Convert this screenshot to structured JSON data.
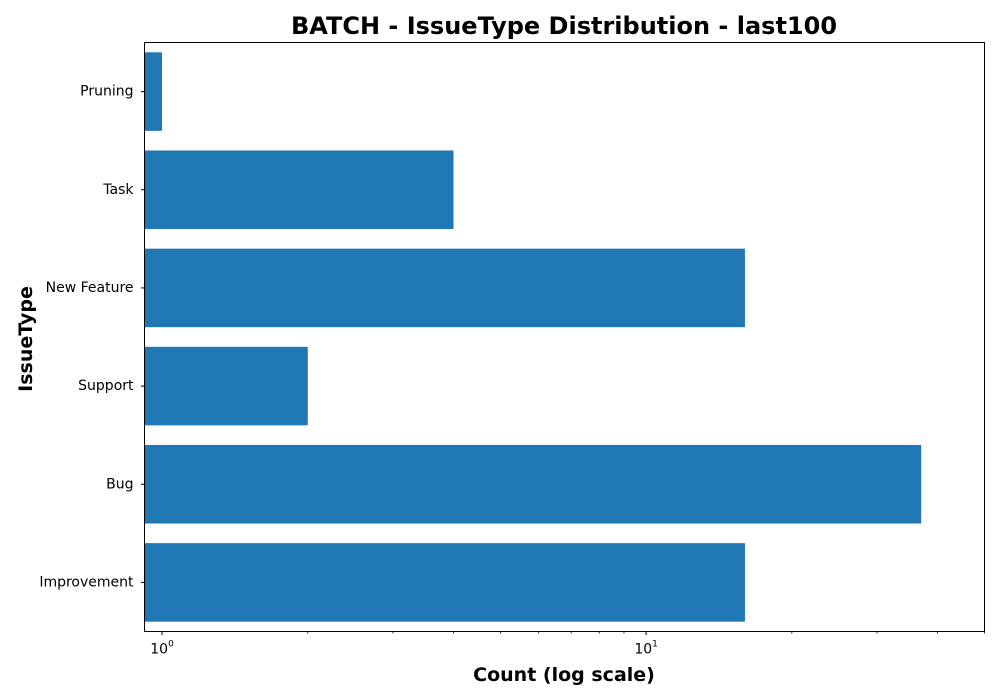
{
  "chart_data": {
    "type": "bar",
    "orientation": "horizontal",
    "title": "BATCH - IssueType Distribution - last100",
    "xlabel": "Count (log scale)",
    "ylabel": "IssueType",
    "x_scale": "log",
    "xlim": [
      0.92,
      50
    ],
    "x_major_ticks": [
      {
        "value": 1,
        "base": "10",
        "exponent": "0"
      },
      {
        "value": 10,
        "base": "10",
        "exponent": "1"
      }
    ],
    "categories": [
      "Pruning",
      "Task",
      "New Feature",
      "Support",
      "Bug",
      "Improvement"
    ],
    "values": [
      1,
      4,
      16,
      2,
      37,
      16
    ],
    "bar_color": "#1f77b4",
    "grid": false,
    "legend": "none"
  }
}
